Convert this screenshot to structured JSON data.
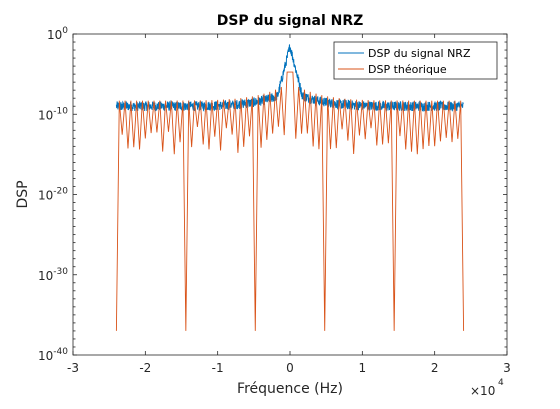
{
  "chart_data": {
    "type": "line",
    "title": "DSP du signal NRZ",
    "xlabel": "Fréquence (Hz)",
    "ylabel": "DSP",
    "x_multiplier": "×10",
    "x_multiplier_exp": "4",
    "xlim": [
      -30000,
      30000
    ],
    "ylim_log10": [
      -40,
      0
    ],
    "yscale": "log",
    "x_ticks": [
      {
        "value": -30000,
        "label": "-3"
      },
      {
        "value": -20000,
        "label": "-2"
      },
      {
        "value": -10000,
        "label": "-1"
      },
      {
        "value": 0,
        "label": "0"
      },
      {
        "value": 10000,
        "label": "1"
      },
      {
        "value": 20000,
        "label": "2"
      },
      {
        "value": 30000,
        "label": "3"
      }
    ],
    "y_ticks": [
      {
        "exp": 0,
        "base": "10",
        "sup": "0"
      },
      {
        "exp": -10,
        "base": "10",
        "sup": "-10"
      },
      {
        "exp": -20,
        "base": "10",
        "sup": "-20"
      },
      {
        "exp": -30,
        "base": "10",
        "sup": "-30"
      },
      {
        "exp": -40,
        "base": "10",
        "sup": "-40"
      }
    ],
    "legend_position": "top-right",
    "grid": false,
    "series": [
      {
        "name": "DSP du signal NRZ",
        "color": "#0072BD",
        "freq_range": [
          -24000,
          24000
        ],
        "peak_at_zero": 0.03,
        "floor_edge": 1e-09,
        "floor_center": 1e-07
      },
      {
        "name": "DSP théorique",
        "color": "#D95319",
        "freq_range": [
          -24000,
          24000
        ],
        "peak_at_zero": 0.0005,
        "envelope_edge": 5e-09,
        "envelope_center": 1e-06,
        "null_spacing_hz": 800,
        "notch_minimum": 1e-37,
        "deep_nulls_hz": [
          -24000,
          -14400,
          -4800,
          4800,
          14400,
          24000
        ]
      }
    ]
  }
}
